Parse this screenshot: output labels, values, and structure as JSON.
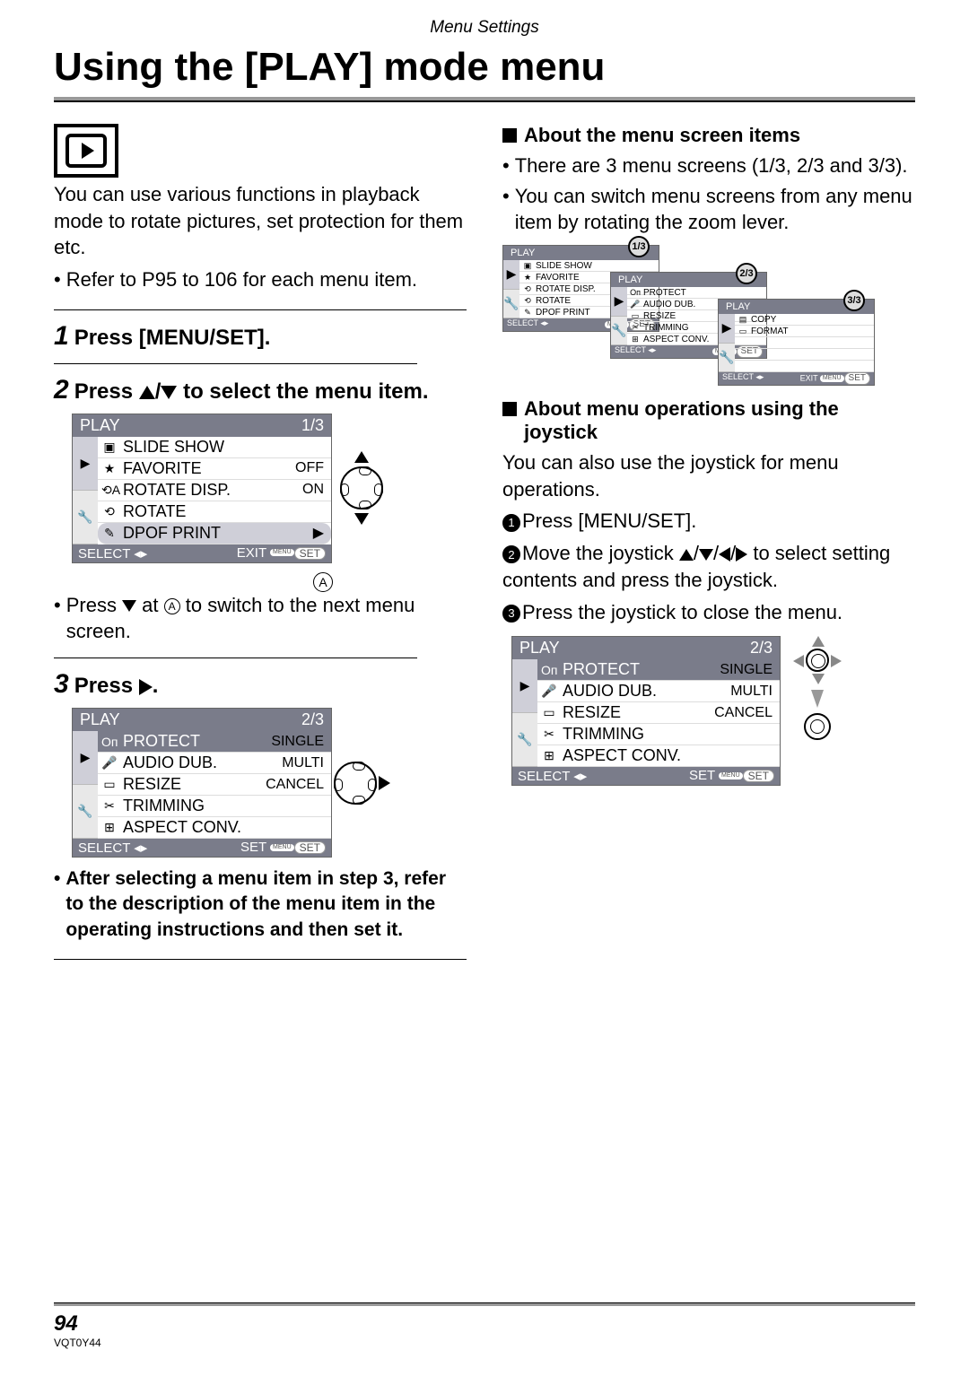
{
  "header_label": "Menu Settings",
  "title": "Using the [PLAY] mode menu",
  "intro": "You can use various functions in playback mode to rotate pictures, set protection for them etc.",
  "intro_bullet": "Refer to P95 to 106 for each menu item.",
  "step1": "Press [MENU/SET].",
  "step2_a": "Press ",
  "step2_b": " to select the menu item.",
  "step3_a": "Press ",
  "step3_b": ".",
  "marker_a": "A",
  "after_menu1_a": "Press ",
  "after_menu1_b": " at ",
  "after_menu1_c": " to switch to the next menu screen.",
  "bold_note": "After selecting a menu item in step 3, refer to the description of the menu item in the operating instructions and then set it.",
  "sub1_title": "About the menu screen items",
  "sub1_b1": "There are 3 menu screens (1/3, 2/3 and 3/3).",
  "sub1_b2": "You can switch menu screens from any menu item by rotating the zoom lever.",
  "sub2_title": "About menu operations using the joystick",
  "sub2_intro": "You can also use the joystick for menu operations.",
  "sub2_s1": "Press [MENU/SET].",
  "sub2_s2a": "Move the joystick ",
  "sub2_s2b": " to select setting contents and press the joystick.",
  "sub2_s3": "Press the joystick to close the menu.",
  "menu1": {
    "title": "PLAY",
    "page": "1/3",
    "items": [
      {
        "icon": "▣",
        "label": "SLIDE SHOW",
        "val": ""
      },
      {
        "icon": "★",
        "label": "FAVORITE",
        "val": "OFF"
      },
      {
        "icon": "⟲A",
        "label": "ROTATE DISP.",
        "val": "ON"
      },
      {
        "icon": "⟲",
        "label": "ROTATE",
        "val": ""
      },
      {
        "icon": "✎",
        "label": "DPOF PRINT",
        "val": "▶",
        "sel": true
      }
    ],
    "bl": "SELECT",
    "br": "EXIT"
  },
  "menu2": {
    "title": "PLAY",
    "page": "2/3",
    "items": [
      {
        "icon": "Oп",
        "label": "PROTECT",
        "val": "SINGLE",
        "hl": true
      },
      {
        "icon": "🎤",
        "label": "AUDIO DUB.",
        "val": "MULTI"
      },
      {
        "icon": "▭",
        "label": "RESIZE",
        "val": "CANCEL"
      },
      {
        "icon": "✂",
        "label": "TRIMMING",
        "val": ""
      },
      {
        "icon": "⊞",
        "label": "ASPECT CONV.",
        "val": ""
      }
    ],
    "bl": "SELECT",
    "bm": "SET"
  },
  "cascade": {
    "m1": {
      "title": "PLAY",
      "page": "",
      "items": [
        {
          "icon": "▣",
          "label": "SLIDE SHOW"
        },
        {
          "icon": "★",
          "label": "FAVORITE"
        },
        {
          "icon": "⟲",
          "label": "ROTATE DISP."
        },
        {
          "icon": "⟲",
          "label": "ROTATE"
        },
        {
          "icon": "✎",
          "label": "DPOF PRINT"
        }
      ],
      "bl": "SELECT"
    },
    "m2": {
      "title": "PLAY",
      "page": "",
      "items": [
        {
          "icon": "Oп",
          "label": "PROTECT"
        },
        {
          "icon": "🎤",
          "label": "AUDIO DUB."
        },
        {
          "icon": "▭",
          "label": "RESIZE"
        },
        {
          "icon": "✂",
          "label": "TRIMMING"
        },
        {
          "icon": "⊞",
          "label": "ASPECT CONV."
        }
      ],
      "bl": "SELECT"
    },
    "m3": {
      "title": "PLAY",
      "page": "",
      "items": [
        {
          "icon": "▤",
          "label": "COPY"
        },
        {
          "icon": "▭",
          "label": "FORMAT"
        }
      ],
      "bl": "SELECT",
      "br": "EXIT"
    },
    "b1": "1/3",
    "b2": "2/3",
    "b3": "3/3"
  },
  "joy_menu": {
    "title": "PLAY",
    "page": "2/3",
    "items": [
      {
        "icon": "Oп",
        "label": "PROTECT",
        "val": "SINGLE",
        "hl": true
      },
      {
        "icon": "🎤",
        "label": "AUDIO DUB.",
        "val": "MULTI"
      },
      {
        "icon": "▭",
        "label": "RESIZE",
        "val": "CANCEL"
      },
      {
        "icon": "✂",
        "label": "TRIMMING",
        "val": ""
      },
      {
        "icon": "⊞",
        "label": "ASPECT CONV.",
        "val": ""
      }
    ],
    "bl": "SELECT",
    "bm": "SET"
  },
  "page_num": "94",
  "doc_code": "VQT0Y44"
}
